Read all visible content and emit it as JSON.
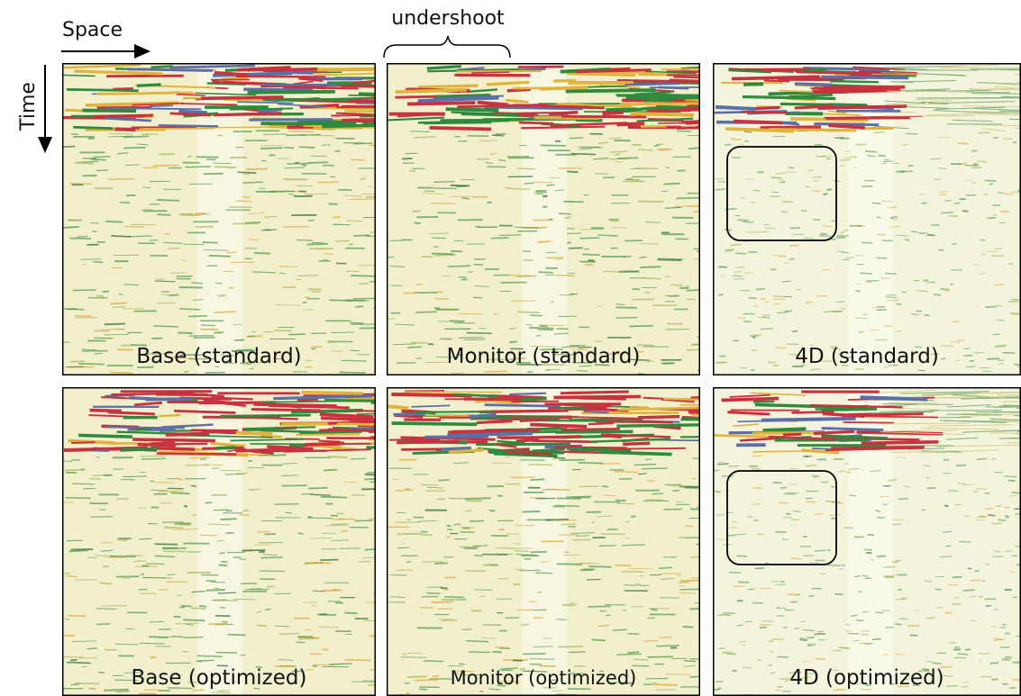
{
  "axes": {
    "x_label": "Space",
    "y_label": "Time"
  },
  "annotation": "undershoot",
  "panels": [
    {
      "label": "Base (standard)"
    },
    {
      "label": "Monitor (standard)"
    },
    {
      "label": "4D (standard)"
    },
    {
      "label": "Base (optimized)"
    },
    {
      "label": "Monitor (optimized)"
    },
    {
      "label": "4D (optimized)"
    }
  ]
}
